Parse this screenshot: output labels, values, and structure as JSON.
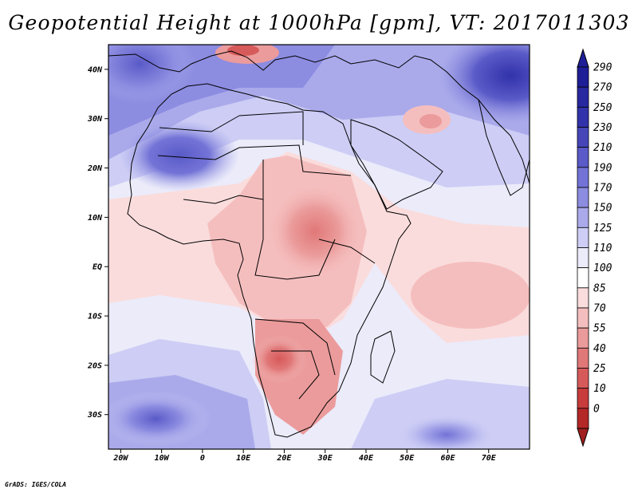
{
  "title": "Geopotential Height at 1000hPa [gpm], VT: 2017011303",
  "credit": "GrADS: IGES/COLA",
  "map": {
    "lon_range": [
      -23,
      80
    ],
    "lat_range": [
      -37,
      45
    ],
    "lat_ticks": [
      {
        "value": 40,
        "label": "40N"
      },
      {
        "value": 30,
        "label": "30N"
      },
      {
        "value": 20,
        "label": "20N"
      },
      {
        "value": 10,
        "label": "10N"
      },
      {
        "value": 0,
        "label": "EQ"
      },
      {
        "value": -10,
        "label": "10S"
      },
      {
        "value": -20,
        "label": "20S"
      },
      {
        "value": -30,
        "label": "30S"
      }
    ],
    "lon_ticks": [
      {
        "value": -20,
        "label": "20W"
      },
      {
        "value": -10,
        "label": "10W"
      },
      {
        "value": 0,
        "label": "0"
      },
      {
        "value": 10,
        "label": "10E"
      },
      {
        "value": 20,
        "label": "20E"
      },
      {
        "value": 30,
        "label": "30E"
      },
      {
        "value": 40,
        "label": "40E"
      },
      {
        "value": 50,
        "label": "50E"
      },
      {
        "value": 60,
        "label": "60E"
      },
      {
        "value": 70,
        "label": "70E"
      }
    ]
  },
  "colorbar": {
    "levels": [
      {
        "label": "290",
        "color": "#1e1e96"
      },
      {
        "label": "270",
        "color": "#2828a0"
      },
      {
        "label": "250",
        "color": "#3232aa"
      },
      {
        "label": "230",
        "color": "#4646b9"
      },
      {
        "label": "210",
        "color": "#5a5ac8"
      },
      {
        "label": "190",
        "color": "#7373d7"
      },
      {
        "label": "170",
        "color": "#8c8ce1"
      },
      {
        "label": "150",
        "color": "#aaaaeb"
      },
      {
        "label": "125",
        "color": "#cdcdf5"
      },
      {
        "label": "110",
        "color": "#ebebfa"
      },
      {
        "label": "100",
        "color": "#ffffff"
      },
      {
        "label": "85",
        "color": "#fadcdc"
      },
      {
        "label": "70",
        "color": "#f5bebe"
      },
      {
        "label": "55",
        "color": "#eb9b9b"
      },
      {
        "label": "40",
        "color": "#e17878"
      },
      {
        "label": "25",
        "color": "#d75a5a"
      },
      {
        "label": "10",
        "color": "#c83c3c"
      },
      {
        "label": "0",
        "color": "#b42828"
      }
    ],
    "top_color": "#1e1e96",
    "bottom_color": "#a01e1e"
  }
}
